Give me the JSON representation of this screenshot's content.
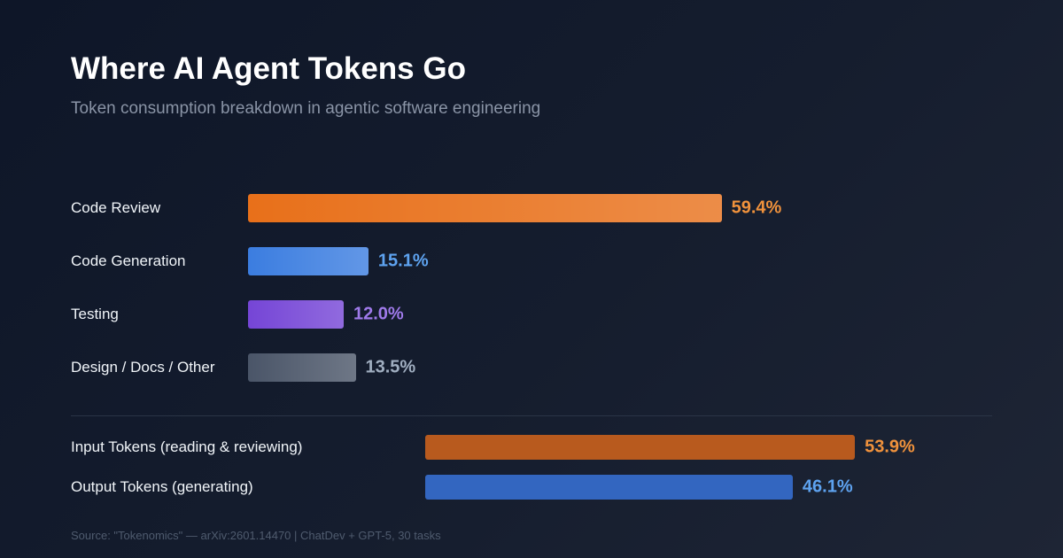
{
  "title": "Where AI Agent Tokens Go",
  "subtitle": "Token consumption breakdown in agentic software engineering",
  "source": "Source: \"Tokenomics\" — arXiv:2601.14470 | ChatDev + GPT-5, 30 tasks",
  "chart_data": [
    {
      "type": "bar",
      "orientation": "horizontal",
      "categories": [
        "Code Review",
        "Code Generation",
        "Testing",
        "Design / Docs / Other"
      ],
      "values": [
        59.4,
        15.1,
        12.0,
        13.5
      ],
      "value_labels": [
        "59.4%",
        "15.1%",
        "12.0%",
        "13.5%"
      ],
      "colors": [
        "#e8701a",
        "#3b7de0",
        "#7545d6",
        "#4a5568"
      ],
      "label_colors": [
        "#f0923c",
        "#5ea3f0",
        "#9f7aea",
        "#a0aec0"
      ]
    },
    {
      "type": "bar",
      "orientation": "horizontal",
      "categories": [
        "Input Tokens (reading & reviewing)",
        "Output Tokens (generating)"
      ],
      "values": [
        53.9,
        46.1
      ],
      "value_labels": [
        "53.9%",
        "46.1%"
      ],
      "colors": [
        "#b85a1e",
        "#3366c0"
      ],
      "label_colors": [
        "#f0923c",
        "#5ea3f0"
      ]
    }
  ]
}
